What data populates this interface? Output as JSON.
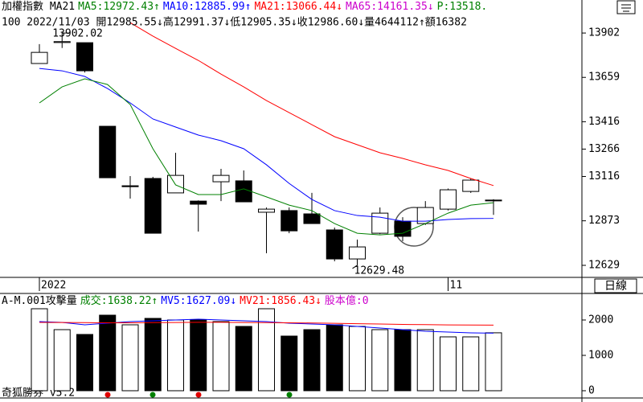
{
  "labels": {
    "period": "日線",
    "footer": "奇狐勝券 v5.2"
  },
  "chart_data": [
    {
      "type": "candlestick",
      "header": [
        {
          "text": "加權指數 MA21",
          "color": "#000000"
        },
        {
          "text": "MA5:12972.43↑",
          "color": "#008000"
        },
        {
          "text": "MA10:12885.99↑",
          "color": "#0000ff"
        },
        {
          "text": "MA21:13066.44↓",
          "color": "#ff0000"
        },
        {
          "text": "MA65:14161.35↓",
          "color": "#cc00cc"
        },
        {
          "text": "P:13518.",
          "color": "#008000"
        }
      ],
      "info": "100 2022/11/03 開12985.55↓高12991.37↓低12905.35↓收12986.60↓量4644112↑額16382",
      "categories": [
        "2022",
        null,
        null,
        null,
        null,
        null,
        null,
        null,
        null,
        null,
        null,
        null,
        null,
        null,
        null,
        null,
        null,
        null,
        "11",
        null,
        null
      ],
      "open": [
        13735,
        13850,
        13849,
        13391,
        13065,
        13105,
        13026,
        12981,
        13087,
        13092,
        12920,
        12929,
        12911,
        12823,
        12664,
        12805,
        12871,
        12858,
        12937,
        13034,
        12985.55
      ],
      "high": [
        13841,
        13902.02,
        13849,
        13391,
        13118,
        13114,
        13246,
        12985,
        13158,
        13149,
        12946,
        12946,
        13026,
        12836,
        12770,
        12946,
        12893,
        12981,
        13050,
        13105,
        12991.37
      ],
      "low": [
        13735,
        13820,
        13686,
        13109,
        12995,
        12805,
        13026,
        12814,
        12981,
        12977,
        12695,
        12805,
        12858,
        12651,
        12629.48,
        12800,
        12761,
        12850,
        12930,
        13026,
        12905.35
      ],
      "close": [
        13796,
        13855,
        13695,
        13109,
        13060,
        12805,
        13122,
        12964,
        13122,
        12977,
        12937,
        12818,
        12858,
        12664,
        12730,
        12915,
        12788,
        12946,
        13043,
        13096,
        12986.6
      ],
      "series": [
        {
          "color": "#ff0000",
          "values": [
            null,
            null,
            null,
            null,
            13959,
            13885,
            13818,
            13752,
            13677,
            13607,
            13532,
            13466,
            13400,
            13334,
            13290,
            13246,
            13215,
            13180,
            13149,
            13105,
            13066
          ]
        },
        {
          "color": "#0000ff",
          "values": [
            13708,
            13695,
            13664,
            13598,
            13519,
            13431,
            13387,
            13343,
            13312,
            13268,
            13180,
            13078,
            12990,
            12929,
            12902,
            12893,
            12871,
            12871,
            12880,
            12885,
            12886
          ]
        },
        {
          "color": "#008000",
          "values": [
            13519,
            13607,
            13651,
            13620,
            13510,
            13268,
            13070,
            13017,
            13017,
            13048,
            13004,
            12959,
            12929,
            12858,
            12805,
            12796,
            12805,
            12858,
            12915,
            12959,
            12972
          ]
        }
      ],
      "annotations": [
        "13902.02",
        "12629.48"
      ],
      "ylim": [
        12563,
        14083
      ],
      "yticks": [
        13902,
        13659,
        13416,
        13266,
        13116,
        12873,
        12629
      ]
    },
    {
      "type": "bar",
      "header": [
        {
          "text": "A-M.001攻擊量",
          "color": "#000000"
        },
        {
          "text": "成交:1638.22↑",
          "color": "#008000"
        },
        {
          "text": "MV5:1627.09↓",
          "color": "#0000ff"
        },
        {
          "text": "MV21:1856.43↓",
          "color": "#ff0000"
        },
        {
          "text": "股本億:0",
          "color": "#cc00cc"
        }
      ],
      "values": [
        2318,
        1727,
        1591,
        2136,
        1864,
        2045,
        2000,
        2000,
        1955,
        1818,
        2318,
        1545,
        1727,
        1864,
        1818,
        1727,
        1727,
        1727,
        1523,
        1523,
        1638
      ],
      "colors": [
        "#ffffff",
        "#ffffff",
        "#000000",
        "#000000",
        "#ffffff",
        "#000000",
        "#ffffff",
        "#000000",
        "#ffffff",
        "#000000",
        "#ffffff",
        "#000000",
        "#000000",
        "#000000",
        "#ffffff",
        "#ffffff",
        "#000000",
        "#ffffff",
        "#ffffff",
        "#ffffff",
        "#ffffff"
      ],
      "series": [
        {
          "color": "#0000ff",
          "values": [
            1955,
            1932,
            1864,
            1909,
            1955,
            1977,
            2000,
            2023,
            2000,
            1977,
            1955,
            1909,
            1886,
            1864,
            1818,
            1773,
            1727,
            1682,
            1659,
            1636,
            1627
          ]
        },
        {
          "color": "#ff0000",
          "values": [
            1932,
            1930,
            1925,
            1920,
            1920,
            1925,
            1930,
            1935,
            1935,
            1930,
            1925,
            1920,
            1915,
            1905,
            1895,
            1885,
            1875,
            1868,
            1862,
            1858,
            1856
          ]
        }
      ],
      "ylim": [
        -205,
        2750
      ],
      "yticks": [
        2000,
        1000,
        0
      ]
    }
  ]
}
